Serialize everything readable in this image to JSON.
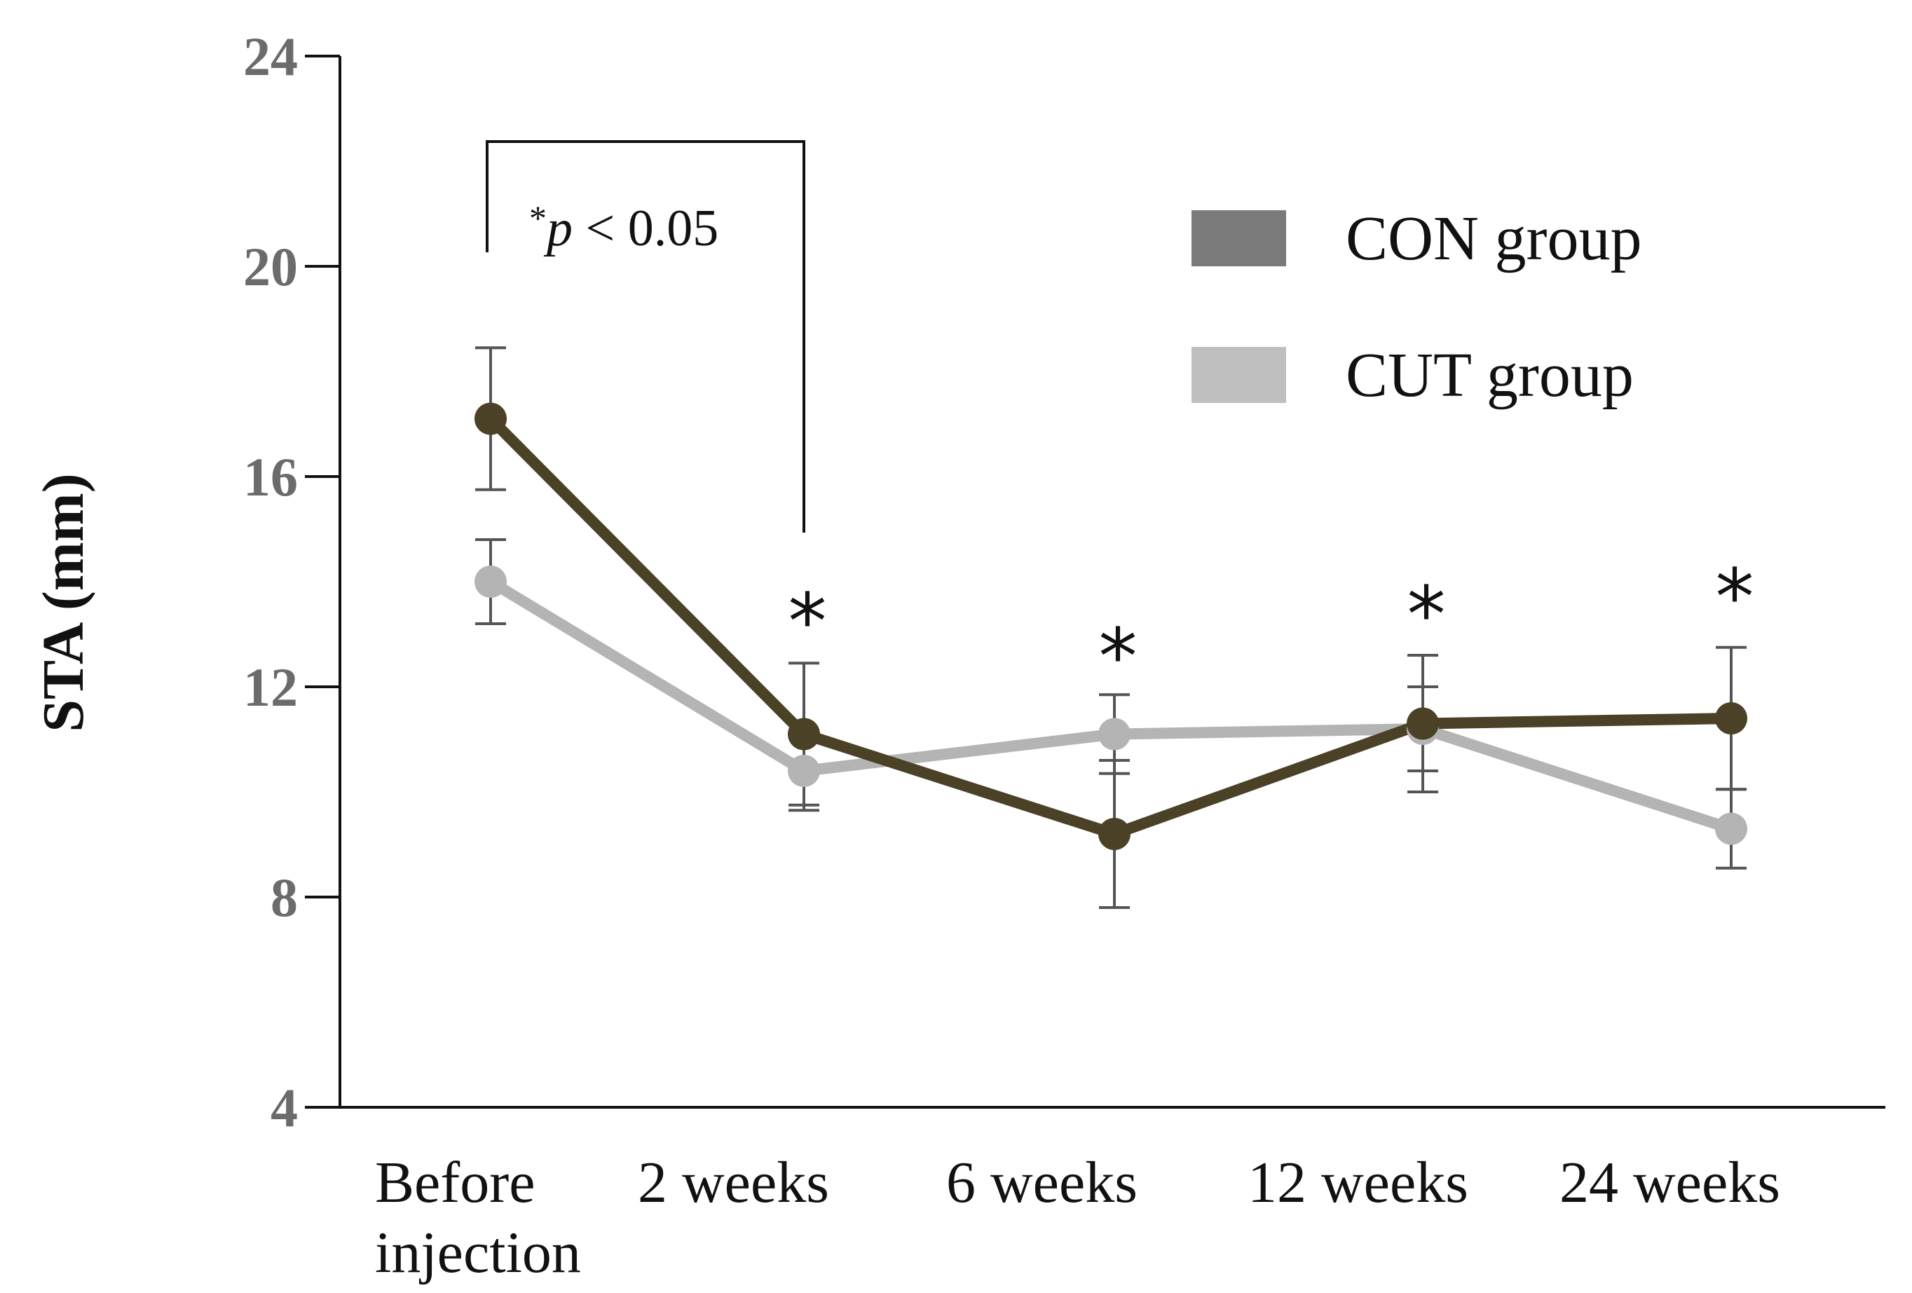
{
  "chart_data": {
    "type": "line",
    "title": "",
    "xlabel": "",
    "ylabel": "STA (mm)",
    "ylim": [
      4,
      24
    ],
    "yticks": [
      4,
      8,
      12,
      16,
      20,
      24
    ],
    "categories": [
      [
        "Before",
        "injection"
      ],
      [
        "2 weeks"
      ],
      [
        "6 weeks"
      ],
      [
        "12 weeks"
      ],
      [
        "24 weeks"
      ]
    ],
    "series": [
      {
        "name": "CON group",
        "color": "#4a4127",
        "legend_color": "#7a7a7a",
        "values": [
          17.1,
          11.1,
          9.2,
          11.3,
          11.4
        ],
        "errors": [
          1.35,
          1.35,
          1.4,
          1.3,
          1.35
        ]
      },
      {
        "name": "CUT group",
        "color": "#b4b4b4",
        "legend_color": "#bfbfbf",
        "values": [
          14.0,
          10.4,
          11.1,
          11.2,
          9.3
        ],
        "errors": [
          0.8,
          0.75,
          0.75,
          0.8,
          0.75
        ]
      }
    ],
    "legend": [
      "CON group",
      "CUT group"
    ],
    "legend_position": "top-right",
    "significance": {
      "marker": "*",
      "marked_categories": [
        1,
        2,
        3,
        4
      ],
      "bracket_from": 0,
      "bracket_to": 1,
      "note_prefix": "*",
      "note_var": "p",
      "note_rest": " < 0.05"
    },
    "grid": false
  }
}
